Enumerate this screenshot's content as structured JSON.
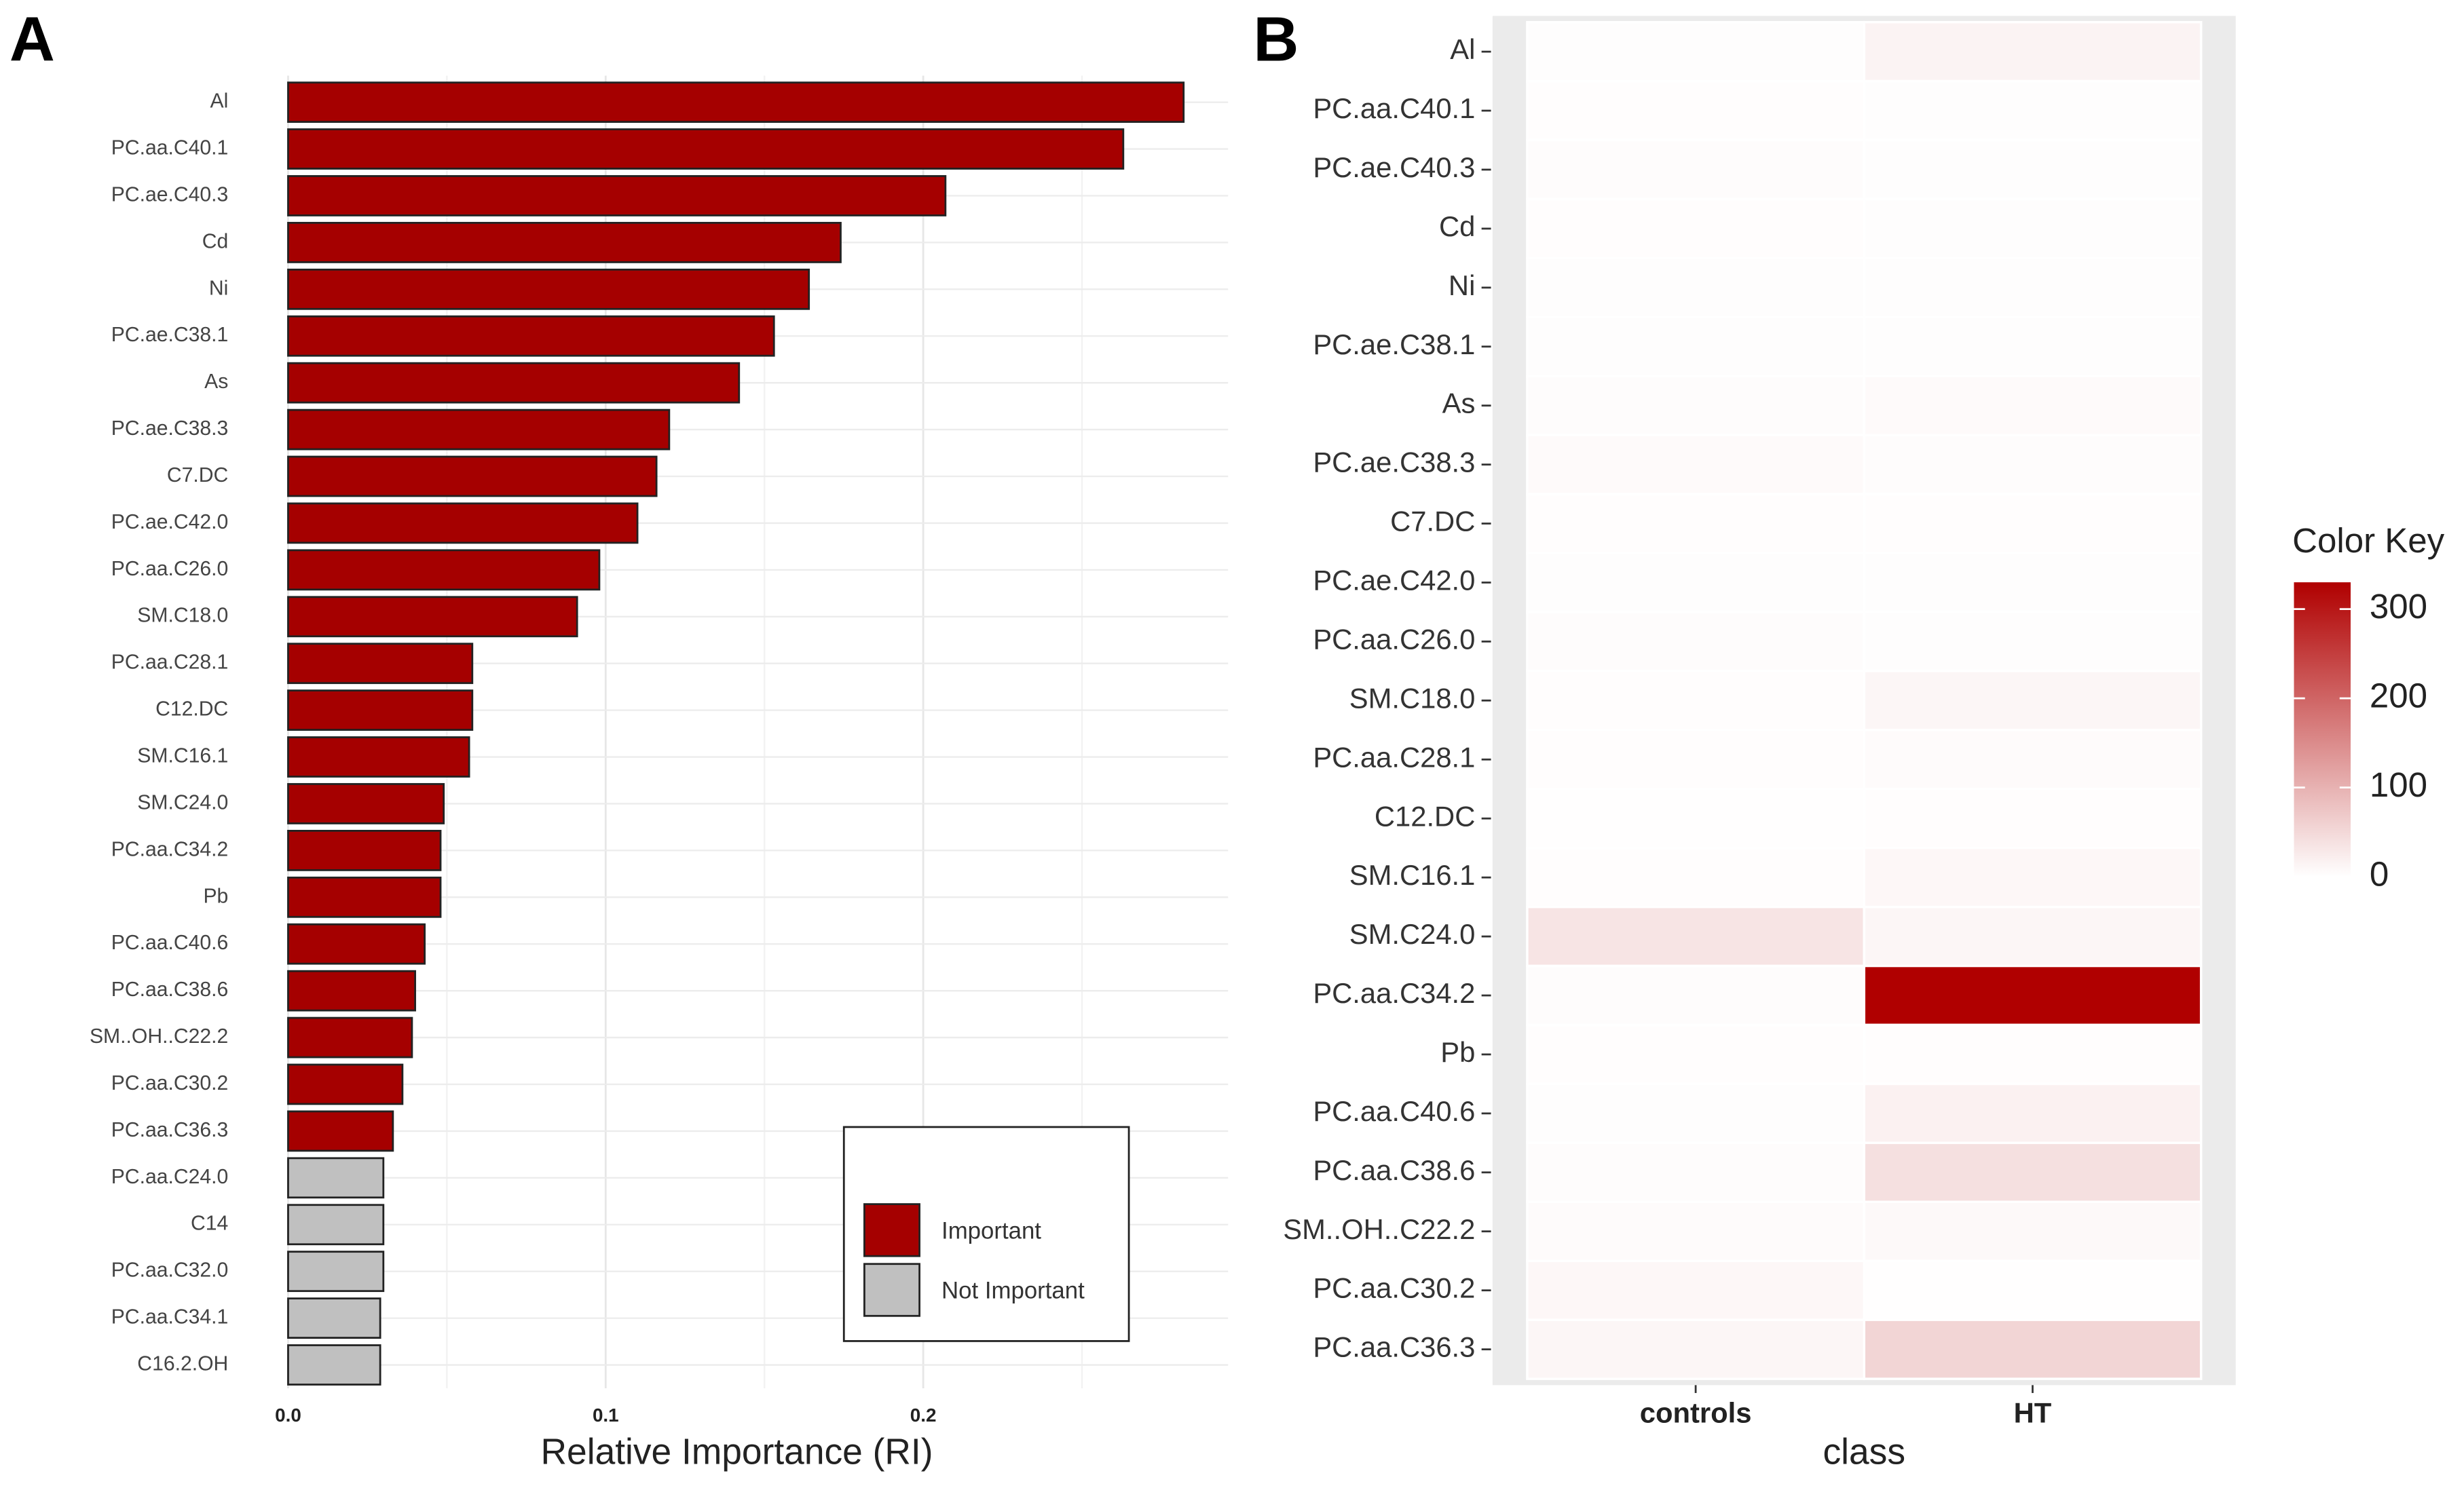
{
  "chart_data": [
    {
      "type": "barh",
      "panel_label": "A",
      "x_label": "Relative Importance (RI)",
      "categories": [
        "Al",
        "PC.aa.C40.1",
        "PC.ae.C40.3",
        "Cd",
        "Ni",
        "PC.ae.C38.1",
        "As",
        "PC.ae.C38.3",
        "C7.DC",
        "PC.ae.C42.0",
        "PC.aa.C26.0",
        "SM.C18.0",
        "PC.aa.C28.1",
        "C12.DC",
        "SM.C16.1",
        "SM.C24.0",
        "PC.aa.C34.2",
        "Pb",
        "PC.aa.C40.6",
        "PC.aa.C38.6",
        "SM..OH..C22.2",
        "PC.aa.C30.2",
        "PC.aa.C36.3",
        "PC.aa.C24.0",
        "C14",
        "PC.aa.C32.0",
        "PC.aa.C34.1",
        "C16.2.OH"
      ],
      "series": [
        {
          "name": "Important",
          "color": "#a50000",
          "values": [
            0.282,
            0.263,
            0.207,
            0.174,
            0.164,
            0.153,
            0.142,
            0.12,
            0.116,
            0.11,
            0.098,
            0.091,
            0.058,
            0.058,
            0.057,
            0.049,
            0.048,
            0.048,
            0.043,
            0.04,
            0.039,
            0.036,
            0.033,
            null,
            null,
            null,
            null,
            null
          ]
        },
        {
          "name": "Not Important",
          "color": "#c0c0c0",
          "values": [
            null,
            null,
            null,
            null,
            null,
            null,
            null,
            null,
            null,
            null,
            null,
            null,
            null,
            null,
            null,
            null,
            null,
            null,
            null,
            null,
            null,
            null,
            null,
            0.03,
            0.03,
            0.03,
            0.029,
            0.029
          ]
        }
      ],
      "xlim": [
        0,
        0.296
      ],
      "xticks": [
        {
          "value": 0,
          "label": "0.0"
        },
        0.1,
        0.2
      ],
      "minor_xticks": [
        0.05,
        0.15,
        0.25
      ],
      "grid": true,
      "legend": "bottom-right"
    },
    {
      "type": "heatmap",
      "panel_label": "B",
      "x_label": "class",
      "columns": [
        "controls",
        "HT"
      ],
      "rows": [
        "Al",
        "PC.aa.C40.1",
        "PC.ae.C40.3",
        "Cd",
        "Ni",
        "PC.ae.C38.1",
        "As",
        "PC.ae.C38.3",
        "C7.DC",
        "PC.ae.C42.0",
        "PC.aa.C26.0",
        "SM.C18.0",
        "PC.aa.C28.1",
        "C12.DC",
        "SM.C16.1",
        "SM.C24.0",
        "PC.aa.C34.2",
        "Pb",
        "PC.aa.C40.6",
        "PC.aa.C38.6",
        "SM..OH..C22.2",
        "PC.aa.C30.2",
        "PC.aa.C36.3"
      ],
      "z": [
        [
          3,
          15
        ],
        [
          2,
          3
        ],
        [
          4,
          3
        ],
        [
          2,
          3
        ],
        [
          3,
          3
        ],
        [
          3,
          3
        ],
        [
          4,
          6
        ],
        [
          6,
          4
        ],
        [
          2,
          2
        ],
        [
          3,
          3
        ],
        [
          4,
          3
        ],
        [
          2,
          12
        ],
        [
          2,
          5
        ],
        [
          1,
          2
        ],
        [
          2,
          10
        ],
        [
          35,
          12
        ],
        [
          4,
          330
        ],
        [
          2,
          2
        ],
        [
          3,
          18
        ],
        [
          4,
          40
        ],
        [
          5,
          8
        ],
        [
          10,
          1
        ],
        [
          12,
          55
        ]
      ],
      "colorbar_title": "Color Key",
      "colors": [
        "#ffffff",
        "#b00000"
      ],
      "zlim": [
        0,
        330
      ],
      "zticks": [
        0,
        100,
        200,
        300
      ]
    }
  ]
}
